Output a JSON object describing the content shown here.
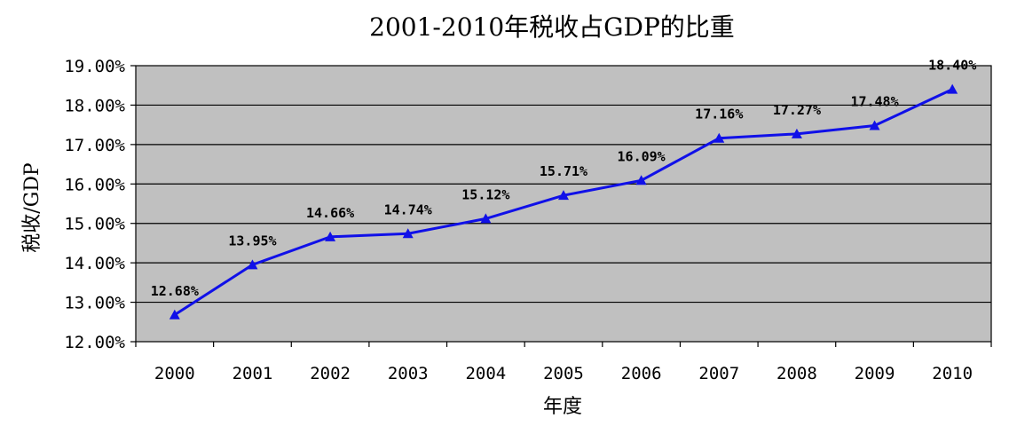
{
  "chart_data": {
    "type": "line",
    "title": "2001-2010年税收占GDP的比重",
    "xlabel": "年度",
    "ylabel": "税收/GDP",
    "categories": [
      "2000",
      "2001",
      "2002",
      "2003",
      "2004",
      "2005",
      "2006",
      "2007",
      "2008",
      "2009",
      "2010"
    ],
    "series": [
      {
        "values": [
          12.68,
          13.95,
          14.66,
          14.74,
          15.12,
          15.71,
          16.09,
          17.16,
          17.27,
          17.48,
          18.4
        ],
        "data_labels": [
          "12.68%",
          "13.95%",
          "14.66%",
          "14.74%",
          "15.12%",
          "15.71%",
          "16.09%",
          "17.16%",
          "17.27%",
          "17.48%",
          "18.40%"
        ],
        "color": "#1010e8",
        "marker": "triangle"
      }
    ],
    "y_ticks": [
      12,
      13,
      14,
      15,
      16,
      17,
      18,
      19
    ],
    "y_tick_labels": [
      "12.00%",
      "13.00%",
      "14.00%",
      "15.00%",
      "16.00%",
      "17.00%",
      "18.00%",
      "19.00%"
    ],
    "ylim": [
      12,
      19
    ],
    "grid": true,
    "legend": "none",
    "plot_background": "#c0c0c0",
    "gridline_color": "#000000"
  }
}
